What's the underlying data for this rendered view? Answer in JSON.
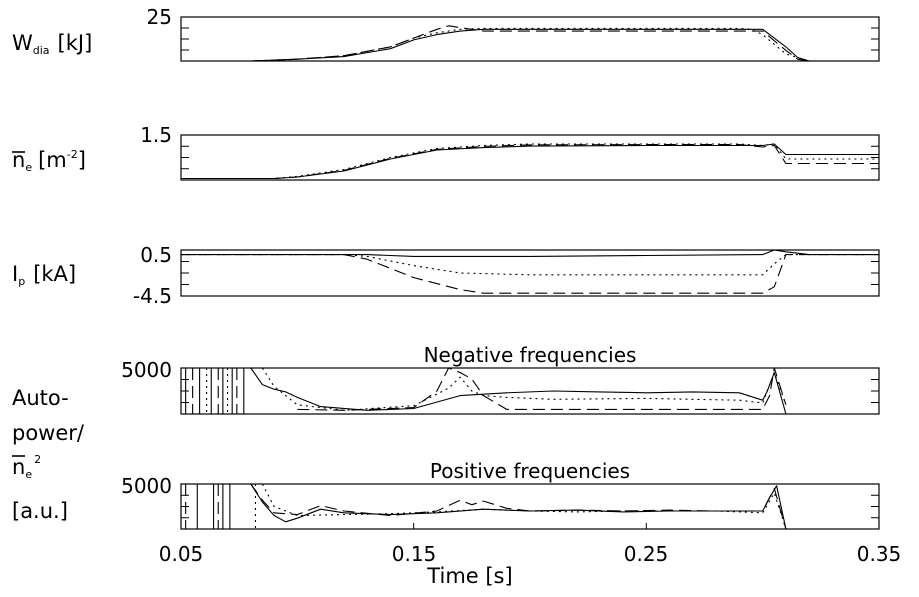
{
  "chart_data": [
    {
      "type": "line",
      "ylabel": "W_dia [kJ]",
      "ylabel_main": "W",
      "ylabel_sub": "dia",
      "ylabel_unit": "[kJ]",
      "ylim": [
        0,
        25
      ],
      "yticks": [
        "25"
      ],
      "xlim": [
        0.05,
        0.35
      ],
      "series": [
        {
          "style": "solid",
          "x": [
            0.05,
            0.08,
            0.1,
            0.12,
            0.14,
            0.15,
            0.16,
            0.17,
            0.18,
            0.2,
            0.25,
            0.29,
            0.3,
            0.31,
            0.315,
            0.32,
            0.35
          ],
          "y": [
            0,
            0,
            1,
            2.5,
            7,
            12,
            15,
            17,
            18,
            18,
            18,
            18,
            18,
            8,
            2,
            0,
            0
          ]
        },
        {
          "style": "dashed",
          "x": [
            0.05,
            0.08,
            0.1,
            0.12,
            0.14,
            0.15,
            0.16,
            0.165,
            0.17,
            0.18,
            0.2,
            0.25,
            0.29,
            0.3,
            0.31,
            0.315,
            0.32,
            0.35
          ],
          "y": [
            0,
            0,
            1,
            3,
            8,
            13,
            18,
            20,
            19,
            17,
            17,
            17,
            17,
            17,
            6,
            1,
            0,
            0
          ]
        },
        {
          "style": "dotted",
          "x": [
            0.05,
            0.08,
            0.1,
            0.12,
            0.14,
            0.15,
            0.16,
            0.17,
            0.18,
            0.2,
            0.25,
            0.29,
            0.295,
            0.3,
            0.31,
            0.32,
            0.35
          ],
          "y": [
            0,
            0,
            1,
            3,
            8,
            13,
            16,
            18,
            18.5,
            18.5,
            18.5,
            18.5,
            18,
            15,
            4,
            0,
            0
          ]
        }
      ]
    },
    {
      "type": "line",
      "ylabel": "n̄_e [m^-2]",
      "ylabel_main": "n",
      "ylabel_sub": "e",
      "ylabel_unit_pre": "[m",
      "ylabel_sup": "-2",
      "ylabel_unit_post": "]",
      "ylim": [
        0,
        1.5
      ],
      "yticks": [
        "1.5"
      ],
      "xlim": [
        0.05,
        0.35
      ],
      "series": [
        {
          "style": "solid",
          "x": [
            0.05,
            0.09,
            0.1,
            0.12,
            0.14,
            0.16,
            0.18,
            0.2,
            0.25,
            0.29,
            0.3,
            0.305,
            0.31,
            0.35
          ],
          "y": [
            0.05,
            0.05,
            0.1,
            0.3,
            0.7,
            1.0,
            1.08,
            1.13,
            1.15,
            1.15,
            1.15,
            1.2,
            0.85,
            0.85
          ]
        },
        {
          "style": "dotted",
          "x": [
            0.05,
            0.09,
            0.1,
            0.12,
            0.14,
            0.16,
            0.18,
            0.2,
            0.25,
            0.29,
            0.3,
            0.305,
            0.31,
            0.35
          ],
          "y": [
            0.05,
            0.05,
            0.12,
            0.35,
            0.75,
            1.05,
            1.15,
            1.2,
            1.2,
            1.2,
            1.15,
            1.2,
            0.7,
            0.7
          ]
        },
        {
          "style": "dashed",
          "x": [
            0.05,
            0.09,
            0.1,
            0.12,
            0.14,
            0.16,
            0.18,
            0.2,
            0.25,
            0.29,
            0.3,
            0.305,
            0.31,
            0.35
          ],
          "y": [
            0.05,
            0.05,
            0.1,
            0.32,
            0.72,
            1.02,
            1.12,
            1.17,
            1.18,
            1.18,
            1.1,
            1.15,
            0.55,
            0.55
          ]
        }
      ]
    },
    {
      "type": "line",
      "ylabel": "I_p [kA]",
      "ylabel_main": "I",
      "ylabel_sub": "p",
      "ylabel_unit": "[kA]",
      "ylim": [
        -4.5,
        0.5
      ],
      "yticks": [
        "0.5",
        "-4.5"
      ],
      "xlim": [
        0.05,
        0.35
      ],
      "series": [
        {
          "style": "solid",
          "x": [
            0.05,
            0.13,
            0.15,
            0.2,
            0.25,
            0.3,
            0.305,
            0.31,
            0.32,
            0.35
          ],
          "y": [
            0,
            0,
            -0.2,
            -0.2,
            -0.1,
            0,
            0.5,
            0.3,
            0,
            0
          ]
        },
        {
          "style": "dotted",
          "x": [
            0.05,
            0.12,
            0.13,
            0.15,
            0.17,
            0.2,
            0.25,
            0.3,
            0.305,
            0.31,
            0.35
          ],
          "y": [
            0,
            0,
            -0.2,
            -1.2,
            -2,
            -2.2,
            -2.2,
            -2.2,
            -1,
            0,
            0
          ]
        },
        {
          "style": "dashed",
          "x": [
            0.05,
            0.12,
            0.13,
            0.15,
            0.17,
            0.18,
            0.2,
            0.25,
            0.3,
            0.305,
            0.31,
            0.35
          ],
          "y": [
            0,
            0,
            -0.5,
            -2.5,
            -3.8,
            -4.2,
            -4.2,
            -4.2,
            -4.2,
            -3.5,
            0,
            0
          ]
        }
      ]
    },
    {
      "type": "line",
      "title": "Negative frequencies",
      "ylim": [
        0,
        5000
      ],
      "yticks": [
        "5000"
      ],
      "xlim": [
        0.05,
        0.35
      ],
      "vlines": [
        {
          "style": "solid",
          "x": [
            0.052,
            0.058,
            0.063,
            0.068,
            0.072,
            0.077
          ]
        },
        {
          "style": "dashed",
          "x": [
            0.055,
            0.066,
            0.074
          ]
        },
        {
          "style": "dotted",
          "x": [
            0.061,
            0.07
          ]
        }
      ],
      "series": [
        {
          "style": "solid",
          "x": [
            0.08,
            0.085,
            0.09,
            0.095,
            0.1,
            0.11,
            0.13,
            0.15,
            0.17,
            0.19,
            0.21,
            0.23,
            0.25,
            0.27,
            0.29,
            0.3,
            0.302,
            0.305,
            0.31
          ],
          "y": [
            5000,
            3200,
            2700,
            2400,
            1800,
            800,
            400,
            600,
            2000,
            2300,
            2500,
            2400,
            2300,
            2400,
            2300,
            1500,
            2500,
            4500,
            0
          ]
        },
        {
          "style": "dashed",
          "x": [
            0.1,
            0.12,
            0.15,
            0.16,
            0.165,
            0.17,
            0.175,
            0.18,
            0.19,
            0.21,
            0.25,
            0.29,
            0.3,
            0.303,
            0.305,
            0.31
          ],
          "y": [
            500,
            400,
            700,
            2500,
            5000,
            4500,
            3800,
            2000,
            500,
            500,
            500,
            500,
            500,
            2000,
            5000,
            1000
          ]
        },
        {
          "style": "dotted",
          "x": [
            0.085,
            0.09,
            0.1,
            0.12,
            0.15,
            0.165,
            0.17,
            0.175,
            0.18,
            0.19,
            0.21,
            0.25,
            0.29,
            0.3,
            0.305,
            0.31
          ],
          "y": [
            5000,
            3000,
            1000,
            400,
            900,
            2800,
            4000,
            2500,
            2000,
            1800,
            1600,
            1700,
            1500,
            1200,
            4500,
            1000
          ]
        }
      ]
    },
    {
      "type": "line",
      "title": "Positive frequencies",
      "ylim": [
        0,
        5000
      ],
      "yticks": [
        "5000"
      ],
      "xlim": [
        0.05,
        0.35
      ],
      "vlines": [
        {
          "style": "solid",
          "x": [
            0.057,
            0.064,
            0.068,
            0.071
          ]
        },
        {
          "style": "dashed",
          "x": [
            0.052,
            0.066
          ]
        },
        {
          "style": "dotted",
          "x": [
            0.082
          ]
        }
      ],
      "series": [
        {
          "style": "solid",
          "x": [
            0.08,
            0.085,
            0.09,
            0.095,
            0.1,
            0.11,
            0.12,
            0.14,
            0.16,
            0.18,
            0.2,
            0.22,
            0.24,
            0.26,
            0.28,
            0.3,
            0.303,
            0.306,
            0.31
          ],
          "y": [
            5000,
            3000,
            1500,
            800,
            1200,
            2200,
            1800,
            1600,
            1800,
            2200,
            2000,
            2100,
            1900,
            2000,
            2000,
            2000,
            3500,
            4800,
            0
          ]
        },
        {
          "style": "dashed",
          "x": [
            0.08,
            0.085,
            0.09,
            0.1,
            0.11,
            0.12,
            0.14,
            0.16,
            0.17,
            0.175,
            0.18,
            0.19,
            0.2,
            0.22,
            0.24,
            0.26,
            0.28,
            0.3,
            0.305,
            0.31
          ],
          "y": [
            5000,
            3200,
            1800,
            1600,
            2600,
            2000,
            1500,
            2000,
            3200,
            2700,
            3100,
            2300,
            2000,
            2100,
            2000,
            2100,
            2000,
            2000,
            4500,
            0
          ]
        },
        {
          "style": "dotted",
          "x": [
            0.085,
            0.09,
            0.1,
            0.12,
            0.14,
            0.16,
            0.18,
            0.2,
            0.22,
            0.24,
            0.26,
            0.28,
            0.3,
            0.305,
            0.31
          ],
          "y": [
            5000,
            2500,
            1500,
            1600,
            1700,
            1900,
            2200,
            2000,
            1900,
            2000,
            2000,
            2000,
            1800,
            4000,
            0
          ]
        }
      ]
    }
  ],
  "xaxis": {
    "ticks": [
      "0.05",
      "0.15",
      "0.25",
      "0.35"
    ],
    "tick_values": [
      0.05,
      0.15,
      0.25,
      0.35
    ],
    "label": "Time [s]"
  },
  "autopower_label": {
    "line1": "Auto-",
    "line2": "power/",
    "n_main": "n",
    "n_sub": "e",
    "n_sup": "2",
    "line4": "[a.u.]"
  }
}
